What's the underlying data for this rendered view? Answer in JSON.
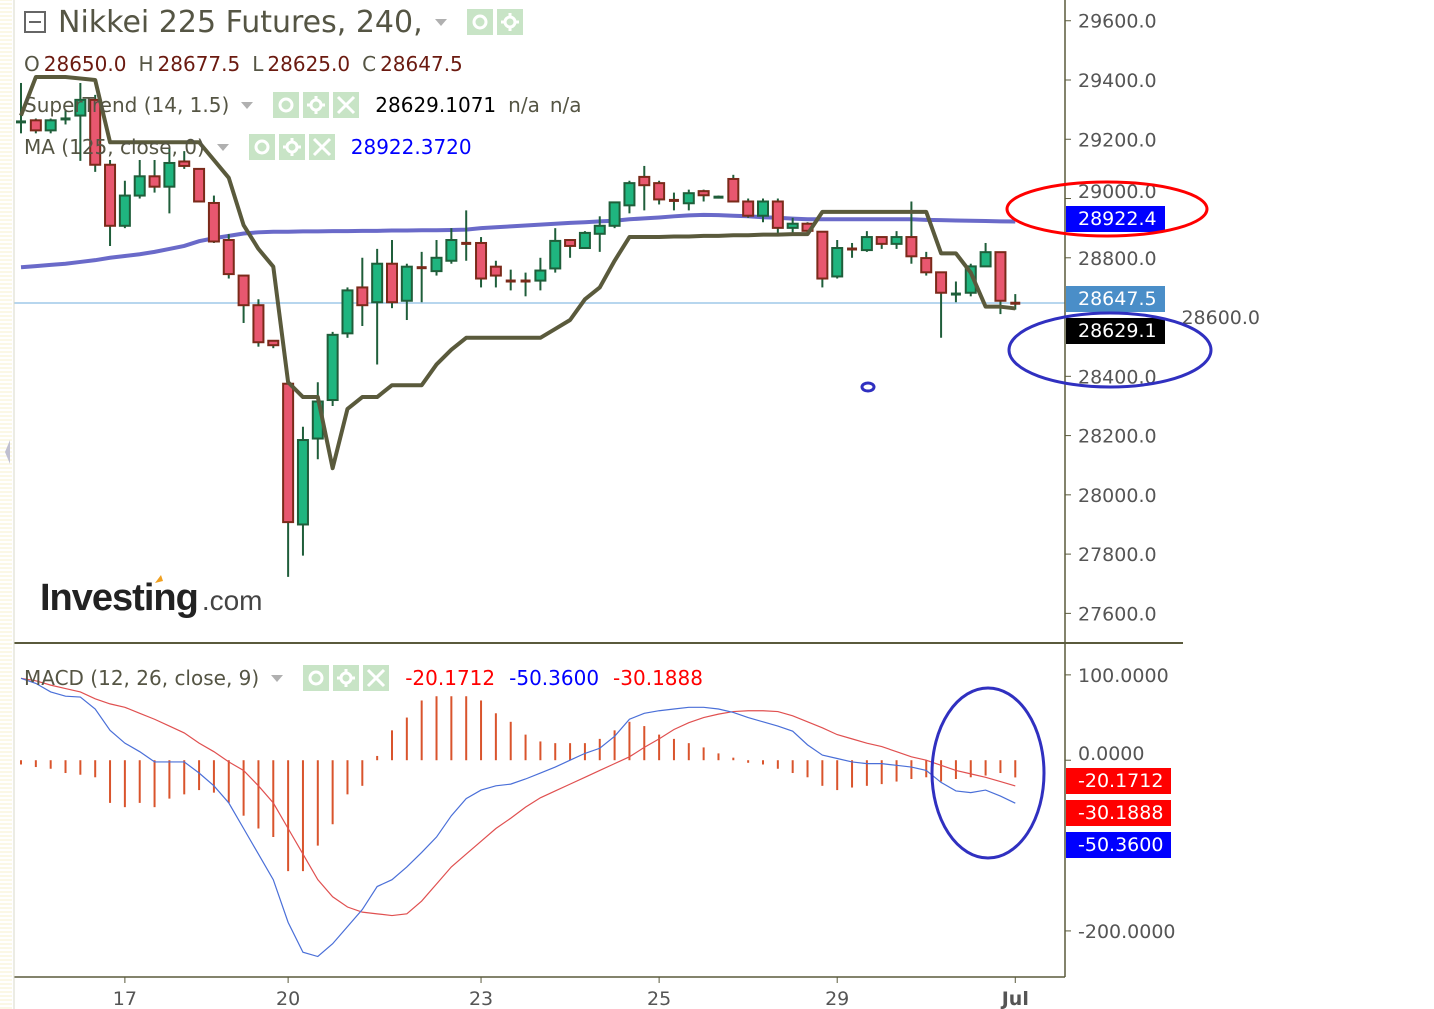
{
  "header": {
    "title": "Nikkei 225 Futures, 240,",
    "ohlc": {
      "o_label": "O",
      "o": "28650.0",
      "h_label": "H",
      "h": "28677.5",
      "l_label": "L",
      "l": "28625.0",
      "c_label": "C",
      "c": "28647.5"
    }
  },
  "indicators": {
    "supertrend": {
      "label": "SuperTrend (14, 1.5)",
      "value": "28629.1071",
      "v2": "n/a",
      "v3": "n/a"
    },
    "ma": {
      "label": "MA (125, close, 0)",
      "value": "28922.3720"
    },
    "macd": {
      "label": "MACD (12, 26, close, 9)",
      "hist": "-20.1712",
      "macd": "-50.3600",
      "signal": "-30.1888"
    }
  },
  "logo": "Investing.com",
  "price_tags": {
    "ma": "28922.4",
    "last": "28647.5",
    "supertrend": "28629.1"
  },
  "macd_tags": {
    "hist": "-20.1712",
    "signal": "-30.1888",
    "macd": "-50.3600"
  },
  "icons": [
    "collapse-icon",
    "eye-icon",
    "gear-icon",
    "close-icon",
    "dropdown-arrow-icon"
  ],
  "colors": {
    "up": "#1fb57f",
    "down": "#e8576f",
    "wick": "#1f5e3a",
    "border_down": "#7a2a1a",
    "supertrend": "#5a5a3c",
    "ma": "#5050c0",
    "macd": "#4a6fd8",
    "signal": "#e05050",
    "hist": "#d9542c",
    "last_line": "#9fc8e8",
    "tag_blue": "#0000ff",
    "tag_last": "#4a8ec8",
    "tag_black": "#000000",
    "tag_red": "#ff0000",
    "annot_red": "#ff0000",
    "annot_blue": "#3030c0"
  },
  "chart_data": [
    {
      "type": "candlestick",
      "title": "Nikkei 225 Futures, 240,",
      "ylim": [
        27500,
        29670
      ],
      "y_ticks": [
        "29600.0",
        "29400.0",
        "29200.0",
        "29000.0",
        "28800.0",
        "28600.0",
        "28400.0",
        "28200.0",
        "28000.0",
        "27800.0",
        "27600.0"
      ],
      "x_ticks": [
        {
          "label": "17",
          "bar": 7
        },
        {
          "label": "20",
          "bar": 18
        },
        {
          "label": "23",
          "bar": 31
        },
        {
          "label": "25",
          "bar": 43
        },
        {
          "label": "29",
          "bar": 55
        },
        {
          "label": "Jul",
          "bar": 67
        }
      ],
      "ohlc": [
        [
          29260,
          29390,
          29220,
          29262
        ],
        [
          29264,
          29270,
          29220,
          29230
        ],
        [
          29230,
          29270,
          29220,
          29264
        ],
        [
          29270,
          29300,
          29250,
          29272
        ],
        [
          29280,
          29390,
          29127,
          29333
        ],
        [
          29333,
          29350,
          29090,
          29114
        ],
        [
          29114,
          29130,
          28840,
          28908
        ],
        [
          28908,
          29060,
          28900,
          29010
        ],
        [
          29010,
          29130,
          29000,
          29075
        ],
        [
          29075,
          29130,
          29020,
          29040
        ],
        [
          29040,
          29170,
          28950,
          29120
        ],
        [
          29125,
          29160,
          29100,
          29110
        ],
        [
          29100,
          29100,
          28990,
          28990
        ],
        [
          28985,
          29010,
          28850,
          28855
        ],
        [
          28860,
          28880,
          28730,
          28745
        ],
        [
          28740,
          28740,
          28580,
          28640
        ],
        [
          28640,
          28660,
          28500,
          28515
        ],
        [
          28520,
          28520,
          28495,
          28505
        ],
        [
          28375,
          28380,
          27723,
          27908
        ],
        [
          27900,
          28230,
          27795,
          28185
        ],
        [
          28190,
          28380,
          28120,
          28315
        ],
        [
          28320,
          28550,
          28300,
          28540
        ],
        [
          28545,
          28700,
          28530,
          28690
        ],
        [
          28700,
          28800,
          28570,
          28640
        ],
        [
          28650,
          28830,
          28440,
          28780
        ],
        [
          28780,
          28860,
          28630,
          28650
        ],
        [
          28655,
          28780,
          28590,
          28770
        ],
        [
          28770,
          28820,
          28650,
          28760
        ],
        [
          28755,
          28860,
          28740,
          28800
        ],
        [
          28790,
          28900,
          28780,
          28860
        ],
        [
          28852,
          28960,
          28790,
          28850
        ],
        [
          28850,
          28870,
          28700,
          28730
        ],
        [
          28770,
          28790,
          28700,
          28740
        ],
        [
          28725,
          28760,
          28690,
          28720
        ],
        [
          28725,
          28750,
          28670,
          28720
        ],
        [
          28723,
          28800,
          28690,
          28757
        ],
        [
          28764,
          28900,
          28750,
          28857
        ],
        [
          28860,
          28860,
          28800,
          28840
        ],
        [
          28833,
          28890,
          28830,
          28884
        ],
        [
          28881,
          28940,
          28820,
          28908
        ],
        [
          28908,
          28990,
          28900,
          28987
        ],
        [
          28977,
          29060,
          28950,
          29052
        ],
        [
          29073,
          29110,
          28960,
          29045
        ],
        [
          29052,
          29060,
          28980,
          28997
        ],
        [
          28997,
          29020,
          28960,
          28990
        ],
        [
          28984,
          29030,
          28960,
          29018
        ],
        [
          29025,
          29030,
          28990,
          29011
        ],
        [
          29007,
          29010,
          29000,
          29008
        ],
        [
          29066,
          29080,
          28990,
          28990
        ],
        [
          28990,
          29000,
          28935,
          28942
        ],
        [
          28942,
          29000,
          28920,
          28990
        ],
        [
          28990,
          29000,
          28880,
          28901
        ],
        [
          28901,
          28935,
          28880,
          28915
        ],
        [
          28915,
          28920,
          28880,
          28891
        ],
        [
          28888,
          28890,
          28700,
          28730
        ],
        [
          28737,
          28860,
          28730,
          28833
        ],
        [
          28833,
          28850,
          28800,
          28826
        ],
        [
          28826,
          28890,
          28820,
          28870
        ],
        [
          28870,
          28870,
          28830,
          28847
        ],
        [
          28847,
          28890,
          28830,
          28870
        ],
        [
          28870,
          28990,
          28780,
          28805
        ],
        [
          28799,
          28820,
          28740,
          28751
        ],
        [
          28751,
          28751,
          28530,
          28682
        ],
        [
          28680,
          28720,
          28650,
          28681
        ],
        [
          28682,
          28780,
          28670,
          28771
        ],
        [
          28771,
          28850,
          28770,
          28819
        ],
        [
          28819,
          28819,
          28610,
          28655
        ],
        [
          28650.0,
          28677.5,
          28625.0,
          28647.5
        ]
      ],
      "supertrend": [
        29280,
        29410,
        29410,
        29410,
        29405,
        29400,
        29190,
        29190,
        29190,
        29190,
        29190,
        29190,
        29190,
        29130,
        29070,
        28910,
        28830,
        28770,
        28380,
        28330,
        28330,
        28090,
        28290,
        28330,
        28330,
        28370,
        28370,
        28370,
        28440,
        28490,
        28530,
        28530,
        28530,
        28530,
        28530,
        28530,
        28560,
        28590,
        28660,
        28700,
        28790,
        28870,
        28870,
        28870,
        28872,
        28872,
        28874,
        28874,
        28876,
        28876,
        28878,
        28878,
        28880,
        28880,
        28955,
        28955,
        28955,
        28955,
        28955,
        28955,
        28955,
        28955,
        28815,
        28815,
        28750,
        28635,
        28635,
        28629.1
      ],
      "ma125": [
        28768,
        28772,
        28776,
        28780,
        28786,
        28792,
        28800,
        28806,
        28812,
        28820,
        28830,
        28840,
        28856,
        28866,
        28874,
        28882,
        28886,
        28888,
        28888,
        28889,
        28889,
        28890,
        28890,
        28891,
        28891,
        28892,
        28892,
        28893,
        28893,
        28894,
        28895,
        28900,
        28903,
        28906,
        28909,
        28912,
        28915,
        28918,
        28920,
        28923,
        28925,
        28930,
        28933,
        28936,
        28940,
        28943,
        28945,
        28944,
        28942,
        28940,
        28937,
        28935,
        28932,
        28930,
        28930,
        28930,
        28930,
        28930,
        28930,
        28930,
        28930,
        28928,
        28927,
        28926,
        28925,
        28924,
        28923,
        28922.4
      ],
      "last_price": 28647.5
    },
    {
      "type": "macd",
      "title": "MACD (12, 26, close, 9)",
      "ylim": [
        -254,
        135
      ],
      "y_ticks": [
        "100.0000",
        "0.0000",
        "-200.0000"
      ],
      "macd": [
        96,
        90,
        80,
        75,
        74,
        60,
        35,
        20,
        10,
        -2,
        -2,
        -2,
        -15,
        -30,
        -50,
        -80,
        -110,
        -140,
        -190,
        -225,
        -230,
        -215,
        -195,
        -175,
        -148,
        -140,
        -125,
        -108,
        -90,
        -65,
        -45,
        -35,
        -30,
        -28,
        -22,
        -15,
        -8,
        0,
        8,
        14,
        28,
        48,
        55,
        58,
        60,
        62,
        62,
        60,
        56,
        50,
        45,
        40,
        34,
        18,
        6,
        2,
        -2,
        -4,
        -4,
        -6,
        -8,
        -12,
        -26,
        -36,
        -38,
        -35,
        -42,
        -50.36
      ],
      "signal": [
        96,
        93,
        88,
        84,
        80,
        72,
        66,
        62,
        55,
        48,
        40,
        32,
        20,
        10,
        -2,
        -12,
        -30,
        -50,
        -80,
        -110,
        -140,
        -160,
        -172,
        -178,
        -180,
        -182,
        -180,
        -165,
        -145,
        -125,
        -110,
        -95,
        -80,
        -68,
        -55,
        -44,
        -36,
        -28,
        -20,
        -12,
        -4,
        4,
        15,
        25,
        36,
        44,
        50,
        54,
        57,
        58,
        58,
        57,
        52,
        45,
        38,
        30,
        25,
        20,
        16,
        10,
        4,
        0,
        -6,
        -12,
        -16,
        -20,
        -25,
        -30.19
      ],
      "histogram": [
        -5,
        -8,
        -10,
        -15,
        -17,
        -20,
        -50,
        -55,
        -50,
        -55,
        -45,
        -40,
        -35,
        -38,
        -50,
        -65,
        -80,
        -90,
        -130,
        -130,
        -100,
        -75,
        -40,
        -30,
        5,
        35,
        50,
        70,
        75,
        75,
        75,
        70,
        55,
        45,
        30,
        22,
        20,
        20,
        20,
        25,
        35,
        45,
        40,
        30,
        25,
        20,
        15,
        8,
        3,
        -3,
        -5,
        -10,
        -15,
        -20,
        -30,
        -35,
        -32,
        -30,
        -28,
        -25,
        -22,
        -20,
        -25,
        -22,
        -20,
        -18,
        -15,
        -20.17
      ]
    }
  ]
}
